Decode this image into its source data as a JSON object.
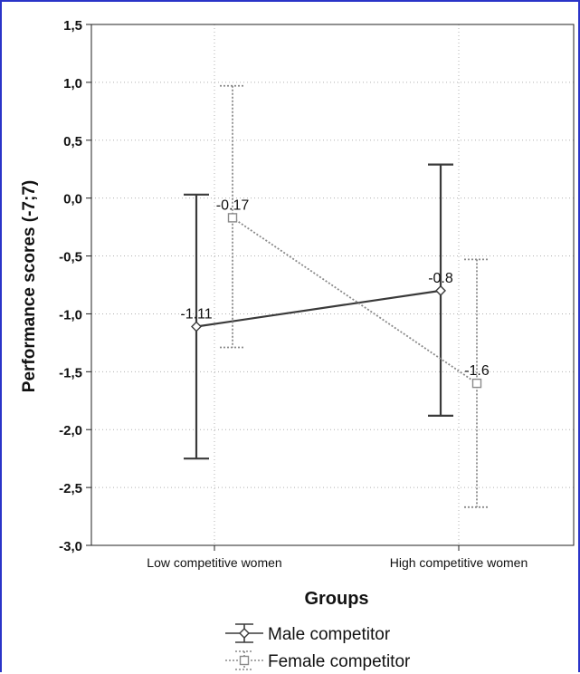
{
  "colors": {
    "border": "#2a34c8",
    "male_line": "#3a3a3a",
    "female_line": "#8a8a8a",
    "grid": "#b0b0b0"
  },
  "chart_data": {
    "type": "line",
    "title": "",
    "xlabel": "Groups",
    "ylabel": "Performance scores (-7;7)",
    "ylim": [
      -3.0,
      1.5
    ],
    "yticks": [
      "1,5",
      "1,0",
      "0,5",
      "0,0",
      "-0,5",
      "-1,0",
      "-1,5",
      "-2,0",
      "-2,5",
      "-3,0"
    ],
    "ytick_values": [
      1.5,
      1.0,
      0.5,
      0.0,
      -0.5,
      -1.0,
      -1.5,
      -2.0,
      -2.5,
      -3.0
    ],
    "categories": [
      "Low competitive women",
      "High competitive women"
    ],
    "grid": true,
    "legend_position": "bottom",
    "series": [
      {
        "name": "Male competitor",
        "marker": "diamond",
        "line_style": "solid",
        "values": [
          -1.11,
          -0.8
        ],
        "value_labels": [
          "-1.11",
          "-0.8"
        ],
        "error_low": [
          -2.25,
          -1.88
        ],
        "error_high": [
          0.03,
          0.29
        ]
      },
      {
        "name": "Female competitor",
        "marker": "square",
        "line_style": "dotted",
        "values": [
          -0.17,
          -1.6
        ],
        "value_labels": [
          "-0.17",
          "-1.6"
        ],
        "error_low": [
          -1.29,
          -2.67
        ],
        "error_high": [
          0.97,
          -0.53
        ]
      }
    ]
  }
}
